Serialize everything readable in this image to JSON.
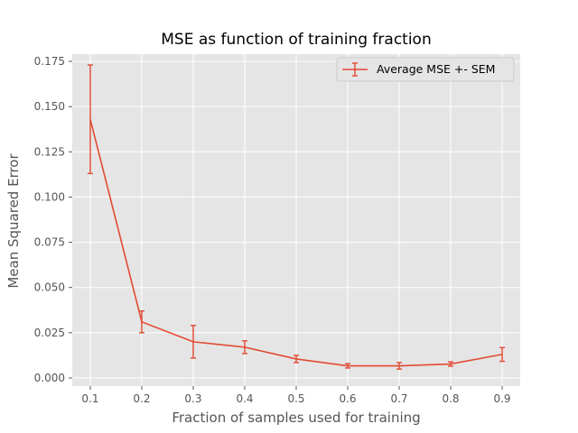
{
  "chart_data": {
    "type": "line",
    "title": "MSE as function of training fraction",
    "xlabel": "Fraction of samples used for training",
    "ylabel": "Mean Squared Error",
    "x": [
      0.1,
      0.2,
      0.3,
      0.4,
      0.5,
      0.6,
      0.7,
      0.8,
      0.9
    ],
    "xlim": [
      0.065,
      0.935
    ],
    "ylim": [
      -0.0045,
      0.179
    ],
    "x_ticks": [
      "0.1",
      "0.2",
      "0.3",
      "0.4",
      "0.5",
      "0.6",
      "0.7",
      "0.8",
      "0.9"
    ],
    "y_ticks": [
      "0.000",
      "0.025",
      "0.050",
      "0.075",
      "0.100",
      "0.125",
      "0.150",
      "0.175"
    ],
    "series": [
      {
        "name": "Average MSE +- SEM",
        "color": "#e24a33",
        "values": [
          0.143,
          0.031,
          0.02,
          0.017,
          0.0105,
          0.0067,
          0.0067,
          0.0077,
          0.013
        ],
        "errors": [
          0.03,
          0.006,
          0.009,
          0.0035,
          0.002,
          0.0012,
          0.0018,
          0.0012,
          0.0038
        ]
      }
    ],
    "grid": true,
    "legend_position": "upper right",
    "style": "ggplot",
    "background_color": "#e5e5e5",
    "grid_color": "#ffffff"
  }
}
